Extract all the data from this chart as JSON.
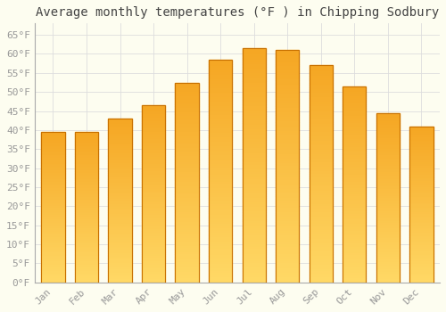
{
  "title": "Average monthly temperatures (°F ) in Chipping Sodbury",
  "months": [
    "Jan",
    "Feb",
    "Mar",
    "Apr",
    "May",
    "Jun",
    "Jul",
    "Aug",
    "Sep",
    "Oct",
    "Nov",
    "Dec"
  ],
  "values": [
    39.5,
    39.5,
    43.0,
    46.5,
    52.5,
    58.5,
    61.5,
    61.0,
    57.0,
    51.5,
    44.5,
    41.0
  ],
  "bar_color_top": "#F5A623",
  "bar_color_bottom": "#FFD966",
  "bar_edge_color": "#C87000",
  "ylim": [
    0,
    68
  ],
  "yticks": [
    0,
    5,
    10,
    15,
    20,
    25,
    30,
    35,
    40,
    45,
    50,
    55,
    60,
    65
  ],
  "background_color": "#FDFDF0",
  "grid_color": "#DDDDDD",
  "title_fontsize": 10,
  "tick_fontsize": 8,
  "tick_color": "#999999",
  "font_family": "monospace"
}
